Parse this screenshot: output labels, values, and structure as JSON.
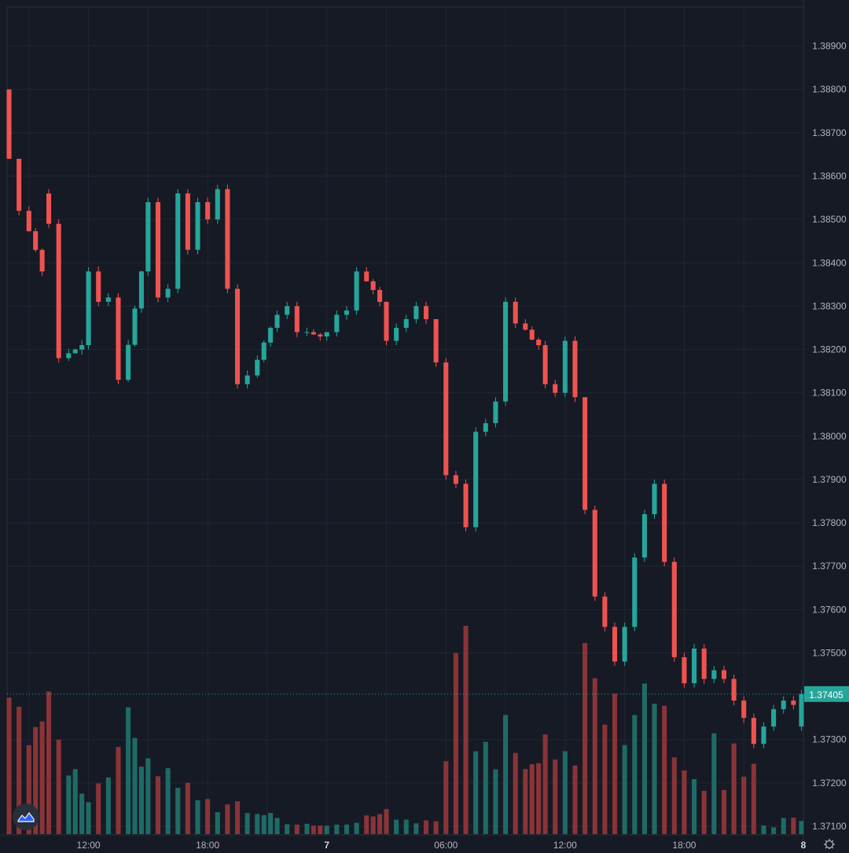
{
  "chart_data": {
    "type": "candlestick",
    "price_axis": {
      "ticks": [
        "1.38900",
        "1.38800",
        "1.38700",
        "1.38600",
        "1.38500",
        "1.38400",
        "1.38300",
        "1.38200",
        "1.38100",
        "1.38000",
        "1.37900",
        "1.37800",
        "1.37700",
        "1.37600",
        "1.37500",
        "1.37300",
        "1.37200",
        "1.37100"
      ],
      "ylim": [
        1.3708,
        1.3899
      ]
    },
    "time_axis": {
      "ticks": [
        "12:00",
        "18:00",
        "7",
        "06:00",
        "12:00",
        "18:00",
        "8"
      ],
      "bold_ticks": [
        "7",
        "8"
      ],
      "range_hours": [
        7.9,
        48.0
      ]
    },
    "last_price": {
      "label": "1.37405",
      "value": 1.37405
    },
    "grid": true,
    "colors": {
      "background": "#161a25",
      "grid": "#232632",
      "up": "#26a69a",
      "down": "#ef5350",
      "volume_up": "#1e6b66",
      "volume_down": "#8a3437",
      "axis_text": "#b2b5be",
      "price_label_bg": "#26a69a"
    },
    "anchors": [
      [
        8.0,
        1.388,
        1.388,
        1.3864,
        1.3864
      ],
      [
        8.5,
        1.3864,
        1.3862,
        1.3849,
        1.3852
      ],
      [
        9.0,
        1.3852,
        1.3856,
        1.3835,
        1.3838
      ],
      [
        10.0,
        1.3856,
        1.3858,
        1.3832,
        1.3849
      ],
      [
        10.5,
        1.3849,
        1.3854,
        1.3814,
        1.3818
      ],
      [
        11.0,
        1.3818,
        1.3825,
        1.381,
        1.3821
      ],
      [
        12.0,
        1.3821,
        1.384,
        1.382,
        1.3838
      ],
      [
        12.5,
        1.3838,
        1.3845,
        1.3818,
        1.3831
      ],
      [
        13.0,
        1.3831,
        1.3838,
        1.3813,
        1.3832
      ],
      [
        13.5,
        1.3832,
        1.3836,
        1.3805,
        1.3813
      ],
      [
        14.0,
        1.3813,
        1.384,
        1.3812,
        1.3838
      ],
      [
        15.0,
        1.3838,
        1.3857,
        1.3835,
        1.3854
      ],
      [
        15.5,
        1.3854,
        1.3856,
        1.3822,
        1.3832
      ],
      [
        16.0,
        1.3832,
        1.3836,
        1.3827,
        1.3834
      ],
      [
        16.5,
        1.3834,
        1.3858,
        1.3832,
        1.3856
      ],
      [
        17.0,
        1.3856,
        1.3859,
        1.3841,
        1.3843
      ],
      [
        17.5,
        1.3843,
        1.386,
        1.3841,
        1.3854
      ],
      [
        18.0,
        1.3854,
        1.3866,
        1.3849,
        1.385
      ],
      [
        18.5,
        1.385,
        1.3861,
        1.3849,
        1.3857
      ],
      [
        19.0,
        1.3857,
        1.3858,
        1.383,
        1.3834
      ],
      [
        19.5,
        1.3834,
        1.3836,
        1.381,
        1.3812
      ],
      [
        20.0,
        1.3812,
        1.3818,
        1.3803,
        1.3814
      ],
      [
        20.5,
        1.3814,
        1.3827,
        1.3813,
        1.3825
      ],
      [
        21.5,
        1.3825,
        1.383,
        1.3818,
        1.3828
      ],
      [
        22.0,
        1.3828,
        1.3835,
        1.382,
        1.383
      ],
      [
        22.5,
        1.383,
        1.3832,
        1.3822,
        1.3824
      ],
      [
        23.0,
        1.3824,
        1.3826,
        1.382,
        1.3823
      ],
      [
        24.0,
        1.3823,
        1.3824,
        1.3821,
        1.3824
      ],
      [
        24.5,
        1.3824,
        1.3829,
        1.382,
        1.3828
      ],
      [
        25.0,
        1.3828,
        1.3832,
        1.3825,
        1.3829
      ],
      [
        25.5,
        1.3829,
        1.384,
        1.3824,
        1.3838
      ],
      [
        26.0,
        1.3838,
        1.384,
        1.3828,
        1.3831
      ],
      [
        27.0,
        1.3831,
        1.3831,
        1.382,
        1.3822
      ],
      [
        27.5,
        1.3822,
        1.3826,
        1.382,
        1.3825
      ],
      [
        28.0,
        1.3825,
        1.3829,
        1.3823,
        1.3827
      ],
      [
        28.5,
        1.3827,
        1.3831,
        1.3824,
        1.383
      ],
      [
        29.0,
        1.383,
        1.3832,
        1.3822,
        1.3827
      ],
      [
        29.5,
        1.3827,
        1.3827,
        1.3815,
        1.3817
      ],
      [
        30.0,
        1.3817,
        1.3818,
        1.3789,
        1.3791
      ],
      [
        30.5,
        1.3791,
        1.3794,
        1.378,
        1.3789
      ],
      [
        31.0,
        1.3789,
        1.3802,
        1.3773,
        1.3779
      ],
      [
        31.5,
        1.3779,
        1.3805,
        1.3776,
        1.3801
      ],
      [
        32.0,
        1.3801,
        1.381,
        1.3797,
        1.3803
      ],
      [
        32.5,
        1.3803,
        1.3809,
        1.3792,
        1.3808
      ],
      [
        33.0,
        1.3808,
        1.3834,
        1.3806,
        1.3831
      ],
      [
        33.5,
        1.3831,
        1.3834,
        1.3822,
        1.3826
      ],
      [
        34.0,
        1.3826,
        1.3835,
        1.3812,
        1.3821
      ],
      [
        35.0,
        1.3821,
        1.3826,
        1.3808,
        1.3812
      ],
      [
        35.5,
        1.3812,
        1.3814,
        1.3808,
        1.381
      ],
      [
        36.0,
        1.381,
        1.3825,
        1.38,
        1.3822
      ],
      [
        36.5,
        1.3822,
        1.3823,
        1.3806,
        1.3809
      ],
      [
        37.0,
        1.3809,
        1.3809,
        1.3781,
        1.3783
      ],
      [
        37.5,
        1.3783,
        1.3784,
        1.376,
        1.3763
      ],
      [
        38.0,
        1.3763,
        1.3765,
        1.3752,
        1.3756
      ],
      [
        38.5,
        1.3756,
        1.3768,
        1.3745,
        1.3748
      ],
      [
        39.0,
        1.3748,
        1.3758,
        1.374,
        1.3756
      ],
      [
        39.5,
        1.3756,
        1.378,
        1.3745,
        1.3772
      ],
      [
        40.0,
        1.3772,
        1.3787,
        1.376,
        1.3782
      ],
      [
        40.5,
        1.3782,
        1.379,
        1.3772,
        1.3789
      ],
      [
        41.0,
        1.3789,
        1.3794,
        1.3769,
        1.3771
      ],
      [
        41.5,
        1.3771,
        1.3773,
        1.3746,
        1.3749
      ],
      [
        42.0,
        1.3749,
        1.3755,
        1.374,
        1.3743
      ],
      [
        42.5,
        1.3743,
        1.3754,
        1.374,
        1.3751
      ],
      [
        43.0,
        1.3751,
        1.3752,
        1.3741,
        1.3744
      ],
      [
        43.5,
        1.3744,
        1.3747,
        1.374,
        1.3746
      ],
      [
        44.0,
        1.3746,
        1.3748,
        1.3742,
        1.3744
      ],
      [
        44.5,
        1.3744,
        1.3747,
        1.3737,
        1.3739
      ],
      [
        45.0,
        1.3739,
        1.374,
        1.3732,
        1.3735
      ],
      [
        45.5,
        1.3735,
        1.3737,
        1.3726,
        1.3729
      ],
      [
        46.0,
        1.3729,
        1.3736,
        1.3727,
        1.3733
      ],
      [
        46.5,
        1.3733,
        1.3738,
        1.3732,
        1.3737
      ],
      [
        47.0,
        1.3737,
        1.3741,
        1.3734,
        1.3739
      ],
      [
        47.5,
        1.3739,
        1.3742,
        1.3736,
        1.3738
      ],
      [
        47.9,
        1.3733,
        1.3742,
        1.3732,
        1.37405
      ]
    ],
    "volume_anchors": [
      [
        8.0,
        0.55
      ],
      [
        10.0,
        0.55
      ],
      [
        10.5,
        0.42
      ],
      [
        12.0,
        0.18
      ],
      [
        13.0,
        0.3
      ],
      [
        13.5,
        0.55
      ],
      [
        15.5,
        0.33
      ],
      [
        17.0,
        0.22
      ],
      [
        18.5,
        0.1
      ],
      [
        19.0,
        0.15
      ],
      [
        20.0,
        0.12
      ],
      [
        22.0,
        0.06
      ],
      [
        24.0,
        0.04
      ],
      [
        26.0,
        0.08
      ],
      [
        27.0,
        0.1
      ],
      [
        28.5,
        0.06
      ],
      [
        29.5,
        0.08
      ],
      [
        30.5,
        0.78
      ],
      [
        31.0,
        0.95
      ],
      [
        31.5,
        0.52
      ],
      [
        32.5,
        0.35
      ],
      [
        33.0,
        0.62
      ],
      [
        34.0,
        0.28
      ],
      [
        35.0,
        0.45
      ],
      [
        35.5,
        0.3
      ],
      [
        36.5,
        0.35
      ],
      [
        37.0,
        0.75
      ],
      [
        38.0,
        0.55
      ],
      [
        38.5,
        0.85
      ],
      [
        39.0,
        0.5
      ],
      [
        39.5,
        0.7
      ],
      [
        40.5,
        0.6
      ],
      [
        41.0,
        0.5
      ],
      [
        42.0,
        0.33
      ],
      [
        43.0,
        0.25
      ],
      [
        43.5,
        0.4
      ],
      [
        44.0,
        0.2
      ],
      [
        44.5,
        0.38
      ],
      [
        45.0,
        0.25
      ],
      [
        45.5,
        0.38
      ],
      [
        46.0,
        0.04
      ],
      [
        46.5,
        0.04
      ],
      [
        47.0,
        0.07
      ],
      [
        47.9,
        0.06
      ]
    ]
  }
}
